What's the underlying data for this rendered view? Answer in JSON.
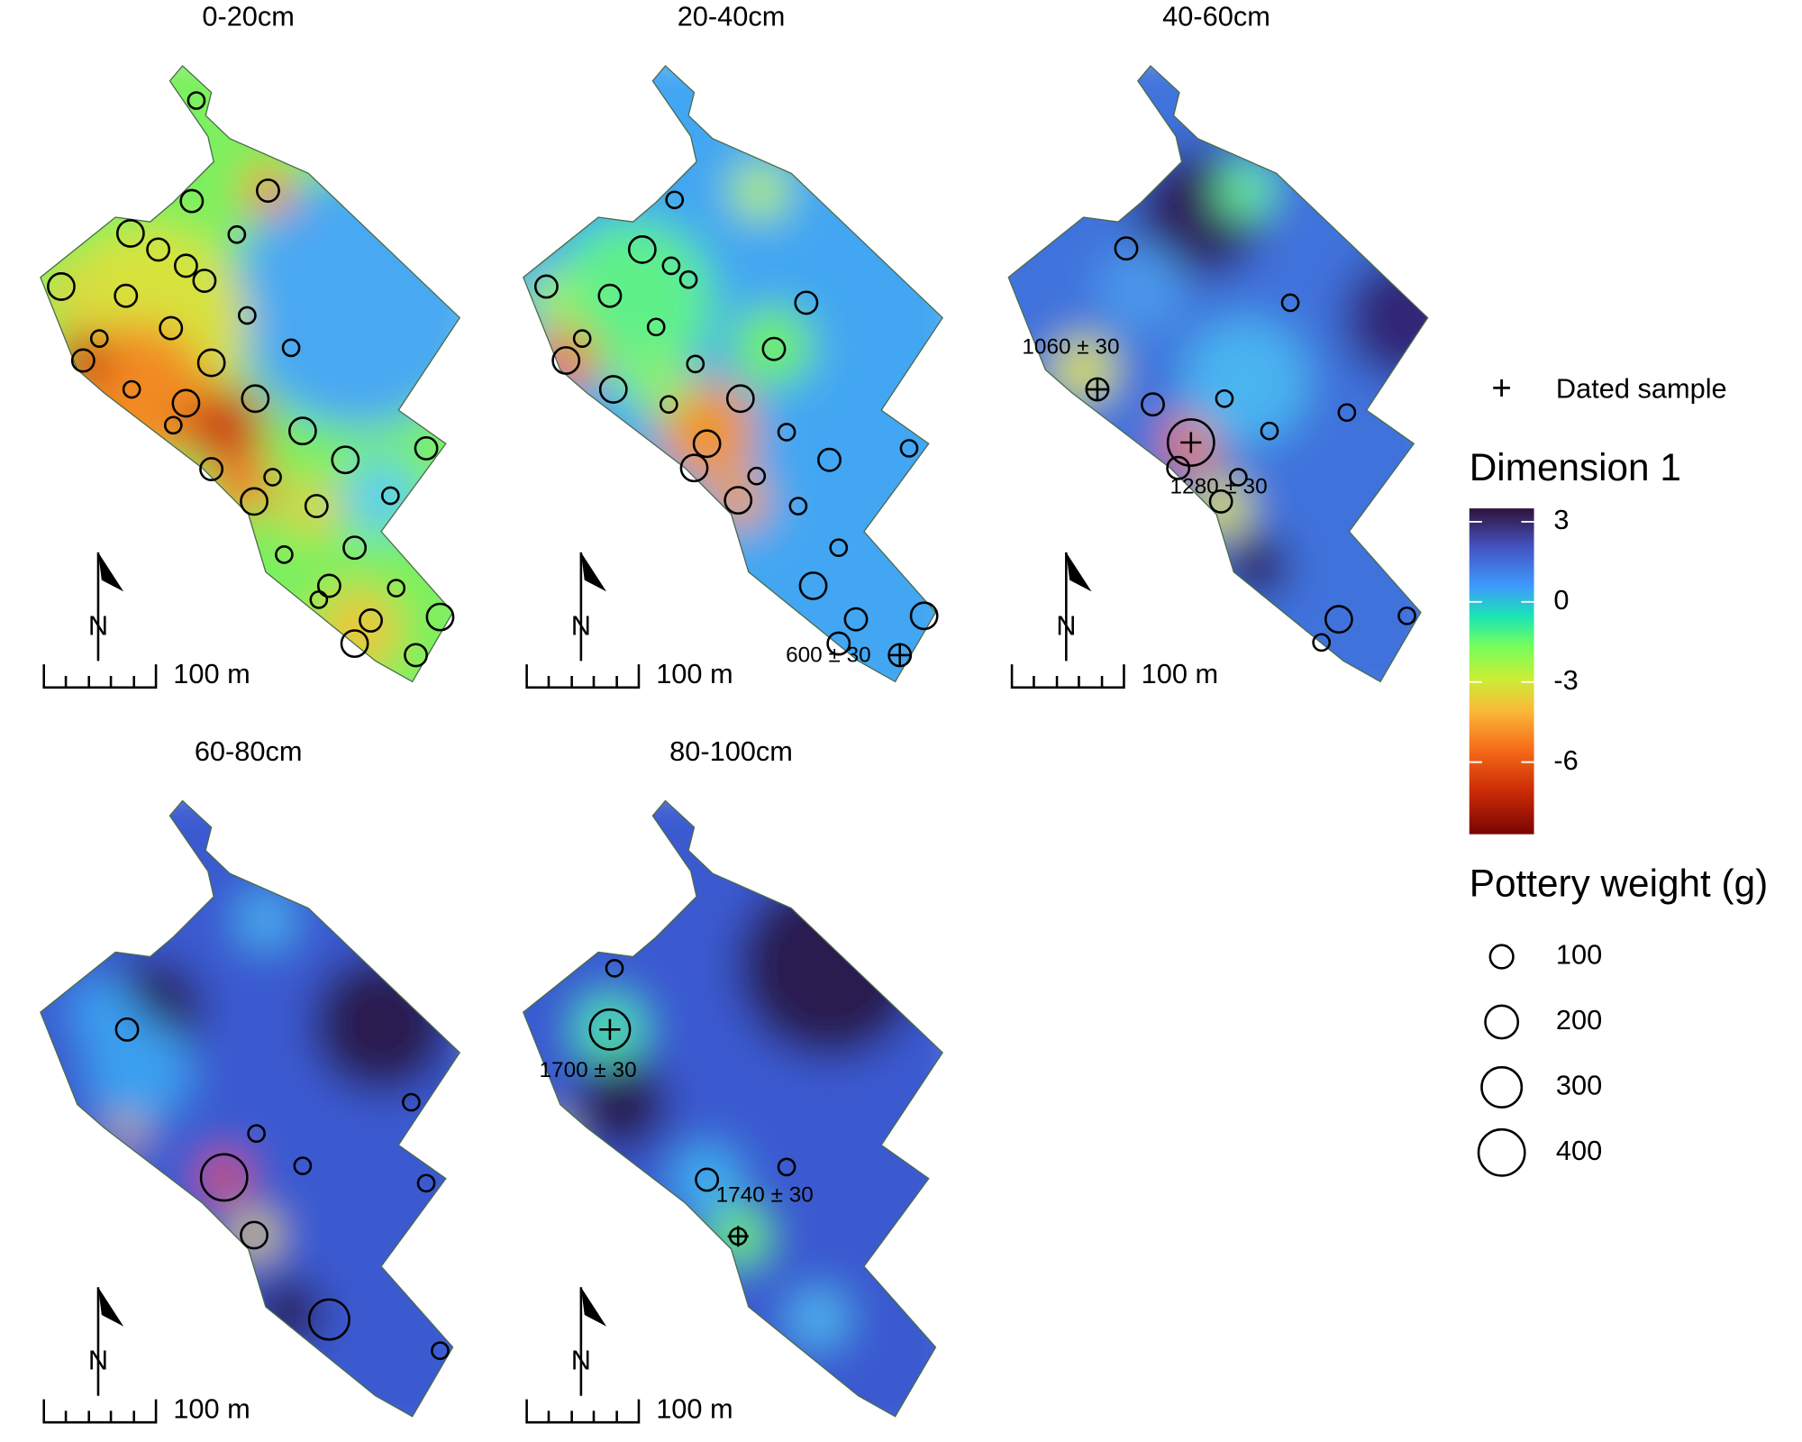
{
  "panels": [
    {
      "title": "0-20cm",
      "points": [
        50,
        90,
        90,
        130,
        90,
        50,
        90,
        90,
        130,
        90,
        50,
        90,
        50,
        50,
        90,
        130,
        50,
        130,
        130,
        50,
        130,
        90,
        130,
        90,
        50,
        50,
        130,
        90,
        90,
        50,
        90,
        50,
        50,
        130,
        90,
        130,
        90
      ],
      "dated": []
    },
    {
      "title": "20-40cm",
      "points": [
        50,
        130,
        50,
        50,
        90,
        90,
        90,
        50,
        50,
        90,
        130,
        50,
        130,
        130,
        50,
        130,
        50,
        50,
        130,
        90,
        50,
        130,
        50,
        50,
        130,
        90,
        130,
        90,
        90
      ],
      "dated": [
        {
          "label": "600 ± 30"
        }
      ]
    },
    {
      "title": "40-60cm",
      "points": [
        90,
        50,
        90,
        90,
        50,
        400,
        50,
        50,
        90,
        50,
        90,
        130,
        50,
        50
      ],
      "dated": [
        {
          "label": "1060 ± 30"
        },
        {
          "label": "1280 ± 30"
        }
      ]
    },
    {
      "title": "60-80cm",
      "points": [
        90,
        50,
        50,
        50,
        50,
        400,
        130,
        300,
        50
      ],
      "dated": []
    },
    {
      "title": "80-100cm",
      "points": [
        50,
        300,
        90,
        50,
        50
      ],
      "dated": [
        {
          "label": "1700 ± 30"
        },
        {
          "label": "1740 ± 30"
        }
      ]
    }
  ],
  "scale_label": "100 m",
  "north_label": "N",
  "legend": {
    "dated_label": "Dated sample",
    "colorbar": {
      "title": "Dimension 1",
      "lim": [
        -8.7,
        3.5
      ],
      "ticks": [
        3,
        0,
        -3,
        -6
      ]
    },
    "size": {
      "title": "Pottery weight (g)",
      "values": [
        100,
        200,
        300,
        400
      ]
    }
  }
}
